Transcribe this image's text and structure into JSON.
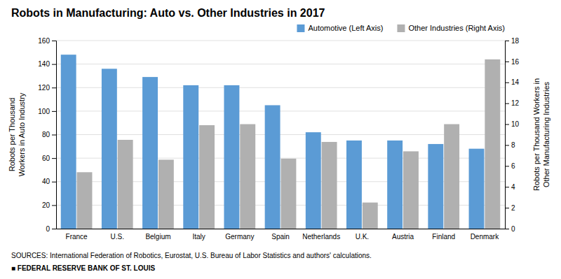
{
  "chart_data": {
    "type": "bar",
    "title": "Robots in Manufacturing: Auto vs. Other Industries in 2017",
    "categories": [
      "France",
      "U.S.",
      "Belgium",
      "Italy",
      "Germany",
      "Spain",
      "Netherlands",
      "U.K.",
      "Austria",
      "Finland",
      "Denmark"
    ],
    "series": [
      {
        "name": "Automotive (Left Axis)",
        "color": "#5b9bd5",
        "values": [
          148,
          136,
          129,
          122,
          122,
          105,
          82,
          75,
          75,
          72,
          68
        ]
      },
      {
        "name": "Other Industries (Right Axis)",
        "color": "#b0b0b0",
        "axis": "y2",
        "values": [
          5.4,
          8.5,
          6.6,
          9.9,
          10.0,
          6.7,
          8.3,
          2.5,
          7.4,
          10.0,
          16.2
        ]
      }
    ],
    "ylabel": "Robots per Thousand\nWorkers in Auto Industry",
    "y2label": "Robots per Thousand Workers in\nOther Manufacturing Industries",
    "ylim": [
      0,
      160
    ],
    "yticks": [
      0,
      20,
      40,
      60,
      80,
      100,
      120,
      140,
      160
    ],
    "y2lim": [
      0,
      18
    ],
    "y2ticks": [
      0,
      2,
      4,
      6,
      8,
      10,
      12,
      14,
      16,
      18
    ],
    "grid": true,
    "legend": "top",
    "annotations": [
      "SOURCES: International Federation of Robotics, Eurostat, U.S. Bureau of Labor Statistics and authors' calculations.",
      "■ FEDERAL RESERVE BANK OF ST. LOUIS"
    ]
  }
}
